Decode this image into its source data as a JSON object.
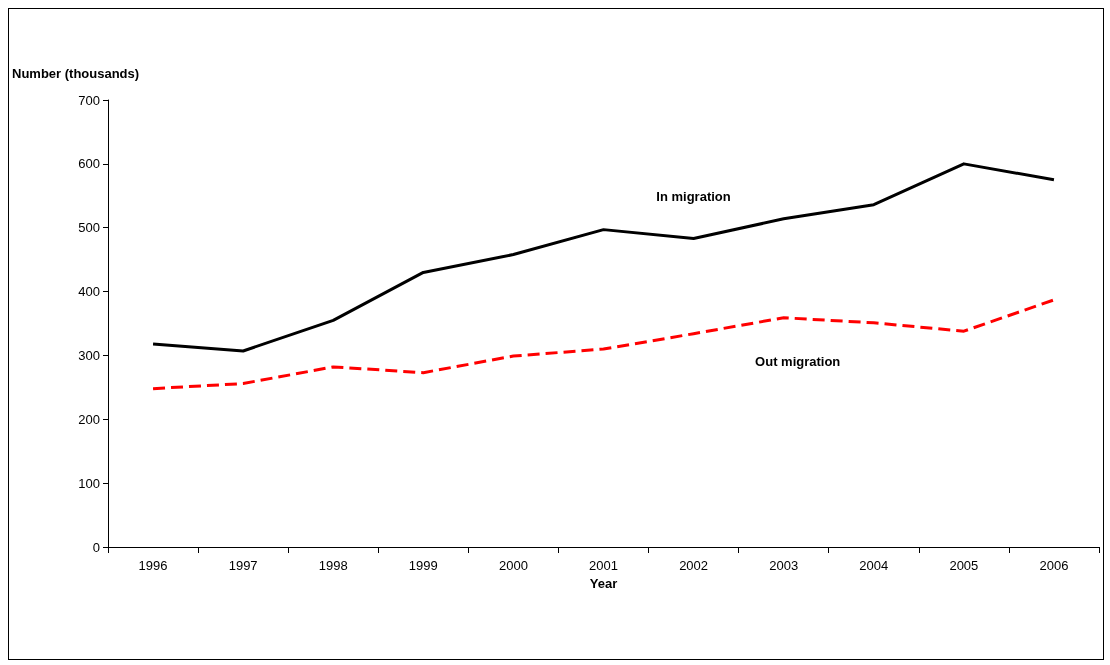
{
  "chart_data": {
    "type": "line",
    "xlabel": "Year",
    "ylabel": "Number (thousands)",
    "categories": [
      "1996",
      "1997",
      "1998",
      "1999",
      "2000",
      "2001",
      "2002",
      "2003",
      "2004",
      "2005",
      "2006"
    ],
    "ylim": [
      0,
      700
    ],
    "yticks": [
      0,
      100,
      200,
      300,
      400,
      500,
      600,
      700
    ],
    "grid": false,
    "legend": false,
    "marker": "none",
    "series": [
      {
        "name": "In migration",
        "color": "#000000",
        "line_style": "solid",
        "values": [
          318,
          307,
          355,
          430,
          458,
          497,
          483,
          514,
          536,
          600,
          575
        ]
      },
      {
        "name": "Out migration",
        "color": "#ff0000",
        "line_style": "dashed",
        "values": [
          248,
          256,
          282,
          273,
          299,
          310,
          334,
          359,
          351,
          338,
          387
        ]
      }
    ]
  }
}
